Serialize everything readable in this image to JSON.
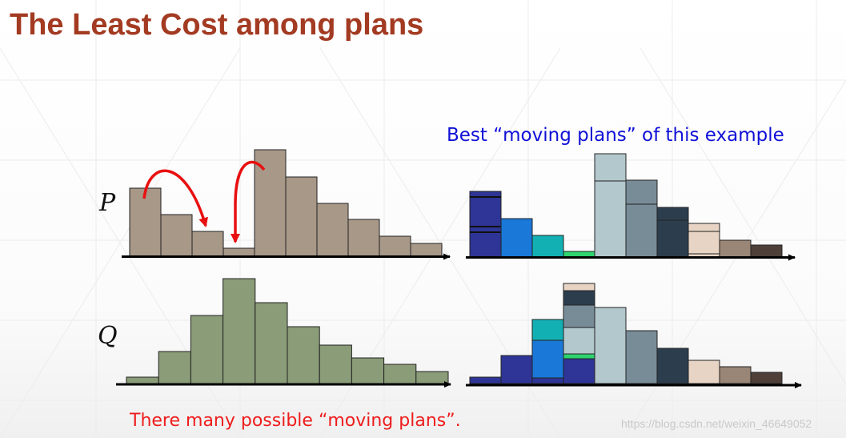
{
  "title": "The Least Cost among plans",
  "subtitle": "Best “moving plans” of this example",
  "labels": {
    "p": "P",
    "q": "Q"
  },
  "footer": "There many possible “moving plans”.",
  "watermark": "https://blog.csdn.net/weixin_46649052",
  "colors": {
    "title": "#a33a22",
    "subtitle": "#1010d8",
    "footer": "#ee1c1c",
    "p_bars": "#a89888",
    "q_bars": "#8a9c78",
    "arrows": "#e81010"
  },
  "histograms": {
    "p_heights": [
      85,
      52,
      31,
      10,
      133,
      99,
      66,
      46,
      25,
      16
    ],
    "q_heights": [
      8,
      40,
      85,
      131,
      101,
      71,
      48,
      32,
      24,
      15
    ]
  },
  "moving_plan_palette": [
    "#2e3596",
    "#1a78d8",
    "#13b0b3",
    "#2ed46e",
    "#b3c8cd",
    "#788c98",
    "#2c3e4e",
    "#e8d4c4",
    "#9a8676",
    "#4e4038"
  ]
}
